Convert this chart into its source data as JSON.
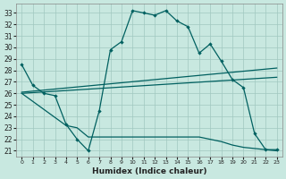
{
  "xlabel": "Humidex (Indice chaleur)",
  "bg_color": "#c8e8e0",
  "grid_color": "#a0c8c0",
  "line_color": "#006060",
  "xlim": [
    -0.5,
    23.5
  ],
  "ylim": [
    20.5,
    33.8
  ],
  "xticks": [
    0,
    1,
    2,
    3,
    4,
    5,
    6,
    7,
    8,
    9,
    10,
    11,
    12,
    13,
    14,
    15,
    16,
    17,
    18,
    19,
    20,
    21,
    22,
    23
  ],
  "yticks": [
    21,
    22,
    23,
    24,
    25,
    26,
    27,
    28,
    29,
    30,
    31,
    32,
    33
  ],
  "curve1_x": [
    0,
    1,
    2,
    3,
    4,
    5,
    6,
    7,
    8,
    9,
    10,
    11,
    12,
    13,
    14,
    15,
    16,
    17,
    18,
    19,
    20,
    21,
    22,
    23
  ],
  "curve1_y": [
    28.5,
    26.7,
    26.0,
    25.8,
    23.3,
    22.0,
    21.0,
    24.5,
    29.8,
    30.5,
    33.2,
    33.0,
    32.8,
    33.2,
    32.3,
    31.8,
    29.5,
    30.3,
    28.8,
    27.2,
    26.5,
    22.5,
    21.1,
    21.1
  ],
  "curve2_x": [
    0,
    23
  ],
  "curve2_y": [
    26.1,
    28.2
  ],
  "curve3_x": [
    0,
    23
  ],
  "curve3_y": [
    26.0,
    27.4
  ],
  "curve4_x": [
    0,
    4,
    5,
    6,
    7,
    8,
    9,
    10,
    11,
    12,
    13,
    14,
    15,
    16,
    17,
    18,
    19,
    20,
    21,
    22,
    23
  ],
  "curve4_y": [
    26.0,
    23.2,
    23.0,
    22.2,
    22.2,
    22.2,
    22.2,
    22.2,
    22.2,
    22.2,
    22.2,
    22.2,
    22.2,
    22.2,
    22.0,
    21.8,
    21.5,
    21.3,
    21.2,
    21.1,
    21.0
  ]
}
